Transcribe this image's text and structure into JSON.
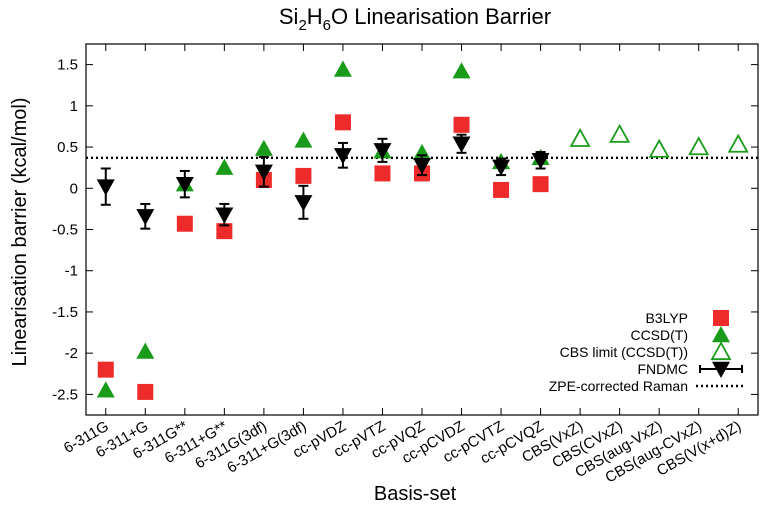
{
  "chart_data": {
    "type": "scatter",
    "title": "Si2H6O Linearisation Barrier",
    "title_parts": {
      "pre": "Si",
      "sub1": "2",
      "mid": "H",
      "sub2": "6",
      "post": "O Linearisation Barrier"
    },
    "xlabel": "Basis-set",
    "ylabel": "Linearisation barrier (kcal/mol)",
    "ylim": [
      -2.75,
      1.75
    ],
    "yticks": [
      1.5,
      1,
      0.5,
      0,
      -0.5,
      -1,
      -1.5,
      -2,
      -2.5
    ],
    "categories": [
      "6-311G",
      "6-311+G",
      "6-311G**",
      "6-311+G**",
      "6-311G(3df)",
      "6-311+G(3df)",
      "cc-pVDZ",
      "cc-pVTZ",
      "cc-pVQZ",
      "cc-pCVDZ",
      "cc-pCVTZ",
      "cc-pCVQZ",
      "CBS(VxZ)",
      "CBS(CVxZ)",
      "CBS(aug-VxZ)",
      "CBS(aug-CVxZ)",
      "CBS(V(x+d)Z)"
    ],
    "series": [
      {
        "name": "B3LYP",
        "marker": "square",
        "color": "#ee2b2b",
        "points": [
          {
            "x": 0,
            "y": -2.2
          },
          {
            "x": 1,
            "y": -2.47
          },
          {
            "x": 2,
            "y": -0.43
          },
          {
            "x": 3,
            "y": -0.52
          },
          {
            "x": 4,
            "y": 0.1
          },
          {
            "x": 5,
            "y": 0.15
          },
          {
            "x": 6,
            "y": 0.8
          },
          {
            "x": 7,
            "y": 0.18
          },
          {
            "x": 8,
            "y": 0.18
          },
          {
            "x": 9,
            "y": 0.77
          },
          {
            "x": 10,
            "y": -0.02
          },
          {
            "x": 11,
            "y": 0.05
          }
        ]
      },
      {
        "name": "CCSD(T)",
        "marker": "triangle-up-filled",
        "color": "#1a9b1a",
        "points": [
          {
            "x": 0,
            "y": -2.45
          },
          {
            "x": 1,
            "y": -1.98
          },
          {
            "x": 2,
            "y": 0.05
          },
          {
            "x": 3,
            "y": 0.25
          },
          {
            "x": 4,
            "y": 0.48
          },
          {
            "x": 5,
            "y": 0.58
          },
          {
            "x": 6,
            "y": 1.44
          },
          {
            "x": 7,
            "y": 0.45
          },
          {
            "x": 8,
            "y": 0.43
          },
          {
            "x": 9,
            "y": 1.42
          },
          {
            "x": 10,
            "y": 0.32
          },
          {
            "x": 11,
            "y": 0.37
          }
        ]
      },
      {
        "name": "CBS limit (CCSD(T))",
        "marker": "triangle-up-open",
        "color": "#1a9b1a",
        "points": [
          {
            "x": 12,
            "y": 0.6
          },
          {
            "x": 13,
            "y": 0.65
          },
          {
            "x": 14,
            "y": 0.47
          },
          {
            "x": 15,
            "y": 0.5
          },
          {
            "x": 16,
            "y": 0.53
          }
        ]
      },
      {
        "name": "FNDMC",
        "marker": "triangle-down-filled",
        "color": "#000000",
        "points": [
          {
            "x": 0,
            "y": 0.02,
            "err": 0.22
          },
          {
            "x": 1,
            "y": -0.34,
            "err": 0.15
          },
          {
            "x": 2,
            "y": 0.05,
            "err": 0.16
          },
          {
            "x": 3,
            "y": -0.32,
            "err": 0.13
          },
          {
            "x": 4,
            "y": 0.2,
            "err": 0.18
          },
          {
            "x": 5,
            "y": -0.17,
            "err": 0.2
          },
          {
            "x": 6,
            "y": 0.4,
            "err": 0.15
          },
          {
            "x": 7,
            "y": 0.46,
            "err": 0.14
          },
          {
            "x": 8,
            "y": 0.28,
            "err": 0.12
          },
          {
            "x": 9,
            "y": 0.54,
            "err": 0.11
          },
          {
            "x": 10,
            "y": 0.26,
            "err": 0.1
          },
          {
            "x": 11,
            "y": 0.34,
            "err": 0.1
          }
        ]
      }
    ],
    "reference_line": {
      "name": "ZPE-corrected Raman",
      "y": 0.37,
      "style": "dotted"
    },
    "legend": {
      "position": "bottom-right",
      "entries": [
        "B3LYP",
        "CCSD(T)",
        "CBS limit (CCSD(T))",
        "FNDMC",
        "ZPE-corrected Raman"
      ]
    },
    "grid": false
  }
}
